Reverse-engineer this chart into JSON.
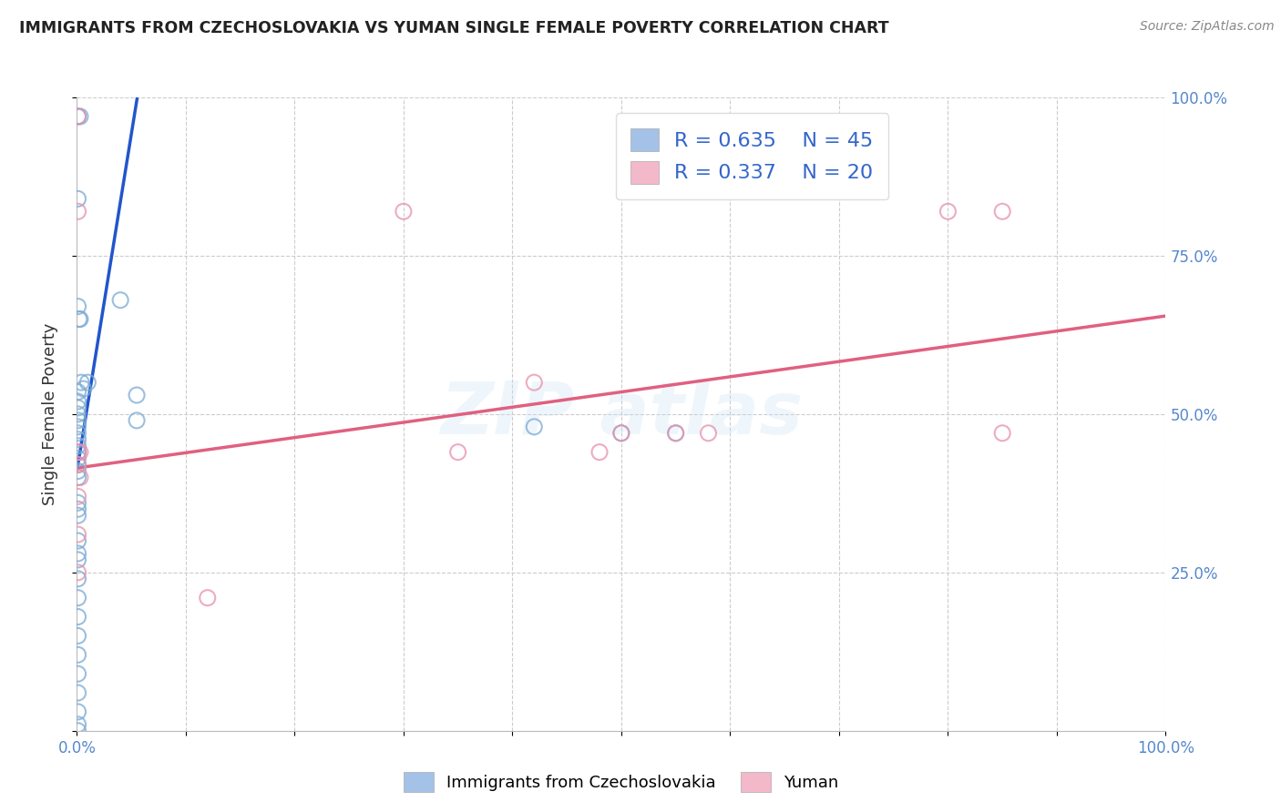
{
  "title": "IMMIGRANTS FROM CZECHOSLOVAKIA VS YUMAN SINGLE FEMALE POVERTY CORRELATION CHART",
  "source": "Source: ZipAtlas.com",
  "ylabel": "Single Female Poverty",
  "legend_label1": "Immigrants from Czechoslovakia",
  "legend_label2": "Yuman",
  "r1": 0.635,
  "n1": 45,
  "r2": 0.337,
  "n2": 20,
  "blue_color": "#a4c2e8",
  "blue_edge_color": "#7baad4",
  "blue_line_color": "#2255cc",
  "pink_color": "#f4b8cb",
  "pink_edge_color": "#e890aa",
  "pink_line_color": "#e06080",
  "xmin": 0.0,
  "xmax": 1.0,
  "ymin": 0.0,
  "ymax": 1.0,
  "grid_color": "#cccccc",
  "bg_color": "#ffffff",
  "title_color": "#222222",
  "source_color": "#888888",
  "stat_color": "#3366cc",
  "tick_color": "#5588cc",
  "blue_points": [
    [
      0.001,
      0.97
    ],
    [
      0.003,
      0.97
    ],
    [
      0.001,
      0.84
    ],
    [
      0.001,
      0.67
    ],
    [
      0.001,
      0.535
    ],
    [
      0.001,
      0.52
    ],
    [
      0.001,
      0.51
    ],
    [
      0.001,
      0.5
    ],
    [
      0.001,
      0.49
    ],
    [
      0.001,
      0.48
    ],
    [
      0.001,
      0.47
    ],
    [
      0.001,
      0.46
    ],
    [
      0.001,
      0.45
    ],
    [
      0.001,
      0.44
    ],
    [
      0.001,
      0.43
    ],
    [
      0.001,
      0.42
    ],
    [
      0.001,
      0.41
    ],
    [
      0.001,
      0.4
    ],
    [
      0.001,
      0.36
    ],
    [
      0.001,
      0.35
    ],
    [
      0.001,
      0.34
    ],
    [
      0.001,
      0.3
    ],
    [
      0.001,
      0.28
    ],
    [
      0.001,
      0.27
    ],
    [
      0.001,
      0.24
    ],
    [
      0.001,
      0.21
    ],
    [
      0.001,
      0.18
    ],
    [
      0.001,
      0.15
    ],
    [
      0.001,
      0.12
    ],
    [
      0.001,
      0.09
    ],
    [
      0.001,
      0.06
    ],
    [
      0.001,
      0.03
    ],
    [
      0.001,
      0.01
    ],
    [
      0.001,
      0.0
    ],
    [
      0.002,
      0.65
    ],
    [
      0.003,
      0.65
    ],
    [
      0.004,
      0.55
    ],
    [
      0.006,
      0.54
    ],
    [
      0.01,
      0.55
    ],
    [
      0.04,
      0.68
    ],
    [
      0.055,
      0.53
    ],
    [
      0.055,
      0.49
    ],
    [
      0.42,
      0.48
    ],
    [
      0.5,
      0.47
    ],
    [
      0.55,
      0.47
    ]
  ],
  "pink_points": [
    [
      0.001,
      0.97
    ],
    [
      0.001,
      0.82
    ],
    [
      0.001,
      0.44
    ],
    [
      0.001,
      0.42
    ],
    [
      0.001,
      0.37
    ],
    [
      0.001,
      0.31
    ],
    [
      0.001,
      0.25
    ],
    [
      0.003,
      0.44
    ],
    [
      0.003,
      0.4
    ],
    [
      0.12,
      0.21
    ],
    [
      0.35,
      0.44
    ],
    [
      0.42,
      0.55
    ],
    [
      0.48,
      0.44
    ],
    [
      0.5,
      0.47
    ],
    [
      0.55,
      0.47
    ],
    [
      0.58,
      0.47
    ],
    [
      0.8,
      0.82
    ],
    [
      0.85,
      0.82
    ],
    [
      0.3,
      0.82
    ],
    [
      0.85,
      0.47
    ]
  ],
  "blue_trend_x0": 0.001,
  "blue_trend_y0": 0.42,
  "blue_trend_x1": 0.055,
  "blue_trend_y1": 0.995,
  "pink_trend_x0": 0.0,
  "pink_trend_y0": 0.415,
  "pink_trend_x1": 1.0,
  "pink_trend_y1": 0.655
}
